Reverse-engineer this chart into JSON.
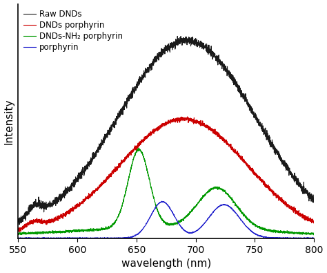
{
  "title": "",
  "xlabel": "wavelength (nm)",
  "ylabel": "Intensity",
  "xlim": [
    550,
    800
  ],
  "legend_labels": [
    "Raw DNDs",
    "DNDs porphyrin",
    "DNDs-NH₂ porphyrin",
    "porphyrin"
  ],
  "line_colors": [
    "#1a1a1a",
    "#cc0000",
    "#009900",
    "#2222cc"
  ],
  "noise_amplitudes": [
    0.01,
    0.009,
    0.007,
    0.006
  ],
  "xticks": [
    550,
    600,
    650,
    700,
    750,
    800
  ],
  "figsize": [
    4.74,
    3.95
  ],
  "dpi": 100
}
